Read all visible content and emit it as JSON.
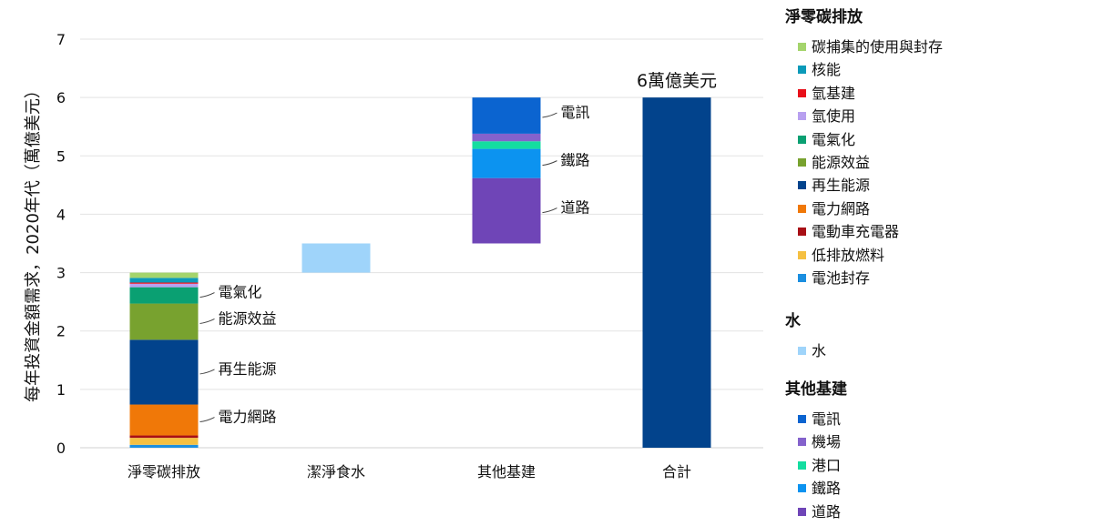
{
  "chart_data": {
    "type": "bar",
    "stacked": true,
    "waterfall": true,
    "ylabel": "每年投資金額需求，2020年代（萬億美元）",
    "ylim": [
      0,
      7
    ],
    "yticks": [
      0,
      1,
      2,
      3,
      4,
      5,
      6,
      7
    ],
    "grid": true,
    "categories": [
      "淨零碳排放",
      "潔淨食水",
      "其他基建",
      "合計"
    ],
    "total_annotation": "6萬億美元",
    "bars": [
      {
        "category": "淨零碳排放",
        "base": 0,
        "segments": [
          {
            "name": "電池封存",
            "value": 0.05,
            "color": "#1b8fe0"
          },
          {
            "name": "低排放燃料",
            "value": 0.12,
            "color": "#f5c042"
          },
          {
            "name": "電動車充電器",
            "value": 0.04,
            "color": "#a80f16"
          },
          {
            "name": "電力網路",
            "value": 0.53,
            "color": "#f07808"
          },
          {
            "name": "再生能源",
            "value": 1.11,
            "color": "#02438c"
          },
          {
            "name": "能源效益",
            "value": 0.62,
            "color": "#78a22f"
          },
          {
            "name": "電氣化",
            "value": 0.28,
            "color": "#0aa072"
          },
          {
            "name": "氫使用",
            "value": 0.06,
            "color": "#b8a0f0"
          },
          {
            "name": "氫基建",
            "value": 0.02,
            "color": "#e8101a"
          },
          {
            "name": "核能",
            "value": 0.08,
            "color": "#0b9ab9"
          },
          {
            "name": "碳捕集的使用與封存",
            "value": 0.09,
            "color": "#a4d46c"
          }
        ]
      },
      {
        "category": "潔淨食水",
        "base": 3.0,
        "segments": [
          {
            "name": "水",
            "value": 0.5,
            "color": "#9fd4fa"
          }
        ]
      },
      {
        "category": "其他基建",
        "base": 3.5,
        "segments": [
          {
            "name": "道路",
            "value": 1.12,
            "color": "#6f45b7"
          },
          {
            "name": "鐵路",
            "value": 0.5,
            "color": "#0c93f0"
          },
          {
            "name": "港口",
            "value": 0.13,
            "color": "#14dda0"
          },
          {
            "name": "機場",
            "value": 0.13,
            "color": "#8462cc"
          },
          {
            "name": "電訊",
            "value": 0.62,
            "color": "#0b64d0"
          }
        ]
      },
      {
        "category": "合計",
        "base": 0,
        "segments": [
          {
            "name": "合計",
            "value": 6.0,
            "color": "#02438c"
          }
        ]
      }
    ],
    "annotations": [
      {
        "bar": 0,
        "segment": "電氣化",
        "text": "電氣化"
      },
      {
        "bar": 0,
        "segment": "能源效益",
        "text": "能源效益"
      },
      {
        "bar": 0,
        "segment": "再生能源",
        "text": "再生能源"
      },
      {
        "bar": 0,
        "segment": "電力網路",
        "text": "電力網路"
      },
      {
        "bar": 2,
        "segment": "電訊",
        "text": "電訊"
      },
      {
        "bar": 2,
        "segment": "鐵路",
        "text": "鐵路"
      },
      {
        "bar": 2,
        "segment": "道路",
        "text": "道路"
      }
    ],
    "legend": {
      "placement": "right",
      "groups": [
        {
          "title": "淨零碳排放",
          "items": [
            {
              "name": "碳捕集的使用與封存",
              "color": "#a4d46c"
            },
            {
              "name": "核能",
              "color": "#0b9ab9"
            },
            {
              "name": "氫基建",
              "color": "#e8101a"
            },
            {
              "name": "氫使用",
              "color": "#b8a0f0"
            },
            {
              "name": "電氣化",
              "color": "#0aa072"
            },
            {
              "name": "能源效益",
              "color": "#78a22f"
            },
            {
              "name": "再生能源",
              "color": "#02438c"
            },
            {
              "name": "電力網路",
              "color": "#f07808"
            },
            {
              "name": "電動車充電器",
              "color": "#a80f16"
            },
            {
              "name": "低排放燃料",
              "color": "#f5c042"
            },
            {
              "name": "電池封存",
              "color": "#1b8fe0"
            }
          ]
        },
        {
          "title": "水",
          "items": [
            {
              "name": "水",
              "color": "#9fd4fa"
            }
          ]
        },
        {
          "title": "其他基建",
          "items": [
            {
              "name": "電訊",
              "color": "#0b64d0"
            },
            {
              "name": "機場",
              "color": "#8462cc"
            },
            {
              "name": "港口",
              "color": "#14dda0"
            },
            {
              "name": "鐵路",
              "color": "#0c93f0"
            },
            {
              "name": "道路",
              "color": "#6f45b7"
            }
          ]
        }
      ]
    }
  }
}
